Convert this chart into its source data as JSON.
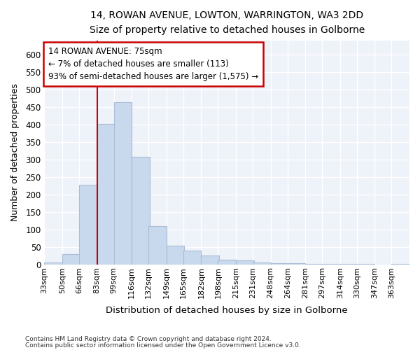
{
  "title_line1": "14, ROWAN AVENUE, LOWTON, WARRINGTON, WA3 2DD",
  "title_line2": "Size of property relative to detached houses in Golborne",
  "xlabel": "Distribution of detached houses by size in Golborne",
  "ylabel": "Number of detached properties",
  "footnote1": "Contains HM Land Registry data © Crown copyright and database right 2024.",
  "footnote2": "Contains public sector information licensed under the Open Government Licence v3.0.",
  "annotation_title": "14 ROWAN AVENUE: 75sqm",
  "annotation_line2": "← 7% of detached houses are smaller (113)",
  "annotation_line3": "93% of semi-detached houses are larger (1,575) →",
  "bar_color": "#c8d8ed",
  "bar_edge_color": "#aabdd6",
  "vline_color": "#cc0000",
  "vline_x": 83,
  "categories": [
    "33sqm",
    "50sqm",
    "66sqm",
    "83sqm",
    "99sqm",
    "116sqm",
    "132sqm",
    "149sqm",
    "165sqm",
    "182sqm",
    "198sqm",
    "215sqm",
    "231sqm",
    "248sqm",
    "264sqm",
    "281sqm",
    "297sqm",
    "314sqm",
    "330sqm",
    "347sqm",
    "363sqm"
  ],
  "bin_edges": [
    33,
    50,
    66,
    83,
    99,
    116,
    132,
    149,
    165,
    182,
    198,
    215,
    231,
    248,
    264,
    281,
    297,
    314,
    330,
    347,
    363
  ],
  "bin_width": 17,
  "values": [
    5,
    30,
    228,
    401,
    463,
    307,
    110,
    53,
    39,
    26,
    13,
    11,
    5,
    4,
    4,
    2,
    1,
    1,
    1,
    0,
    1
  ],
  "ylim": [
    0,
    640
  ],
  "yticks": [
    0,
    50,
    100,
    150,
    200,
    250,
    300,
    350,
    400,
    450,
    500,
    550,
    600
  ],
  "bg_color": "#ffffff",
  "plot_bg_color": "#eef2f9",
  "grid_color": "#ffffff",
  "annotation_box_color": "#ffffff",
  "annotation_box_edge": "#cc0000"
}
